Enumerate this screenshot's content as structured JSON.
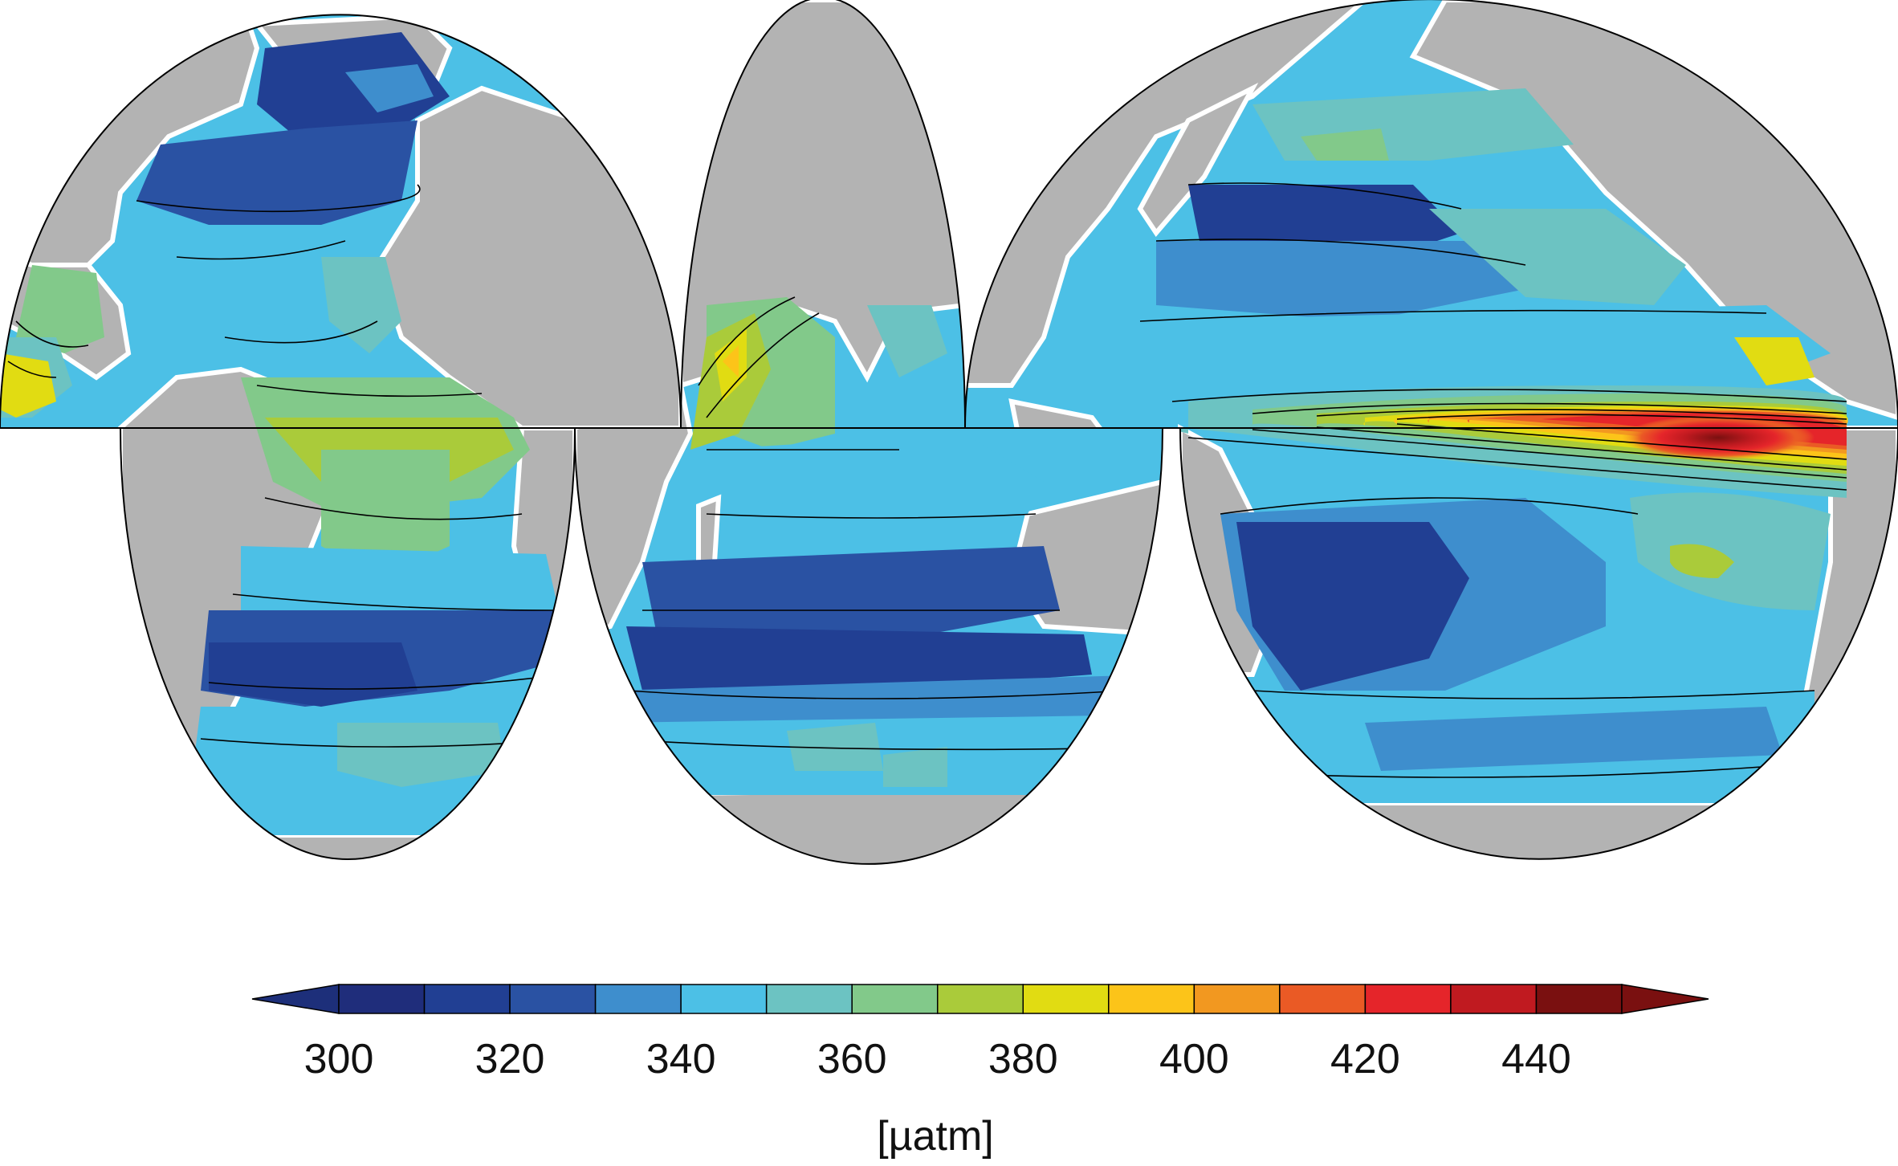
{
  "map": {
    "projection": "interrupted elliptical equal-area (three ocean lobes)",
    "lobes": [
      "atlantic-lobe",
      "indian-lobe",
      "pacific-lobe"
    ],
    "land_color": "#b3b3b3",
    "coast_outline_color": "#ffffff",
    "contour_line_color": "#000000",
    "equator_line_color": "#000000"
  },
  "colorbar": {
    "unit": "[µatm]",
    "min": 300,
    "max": 450,
    "step": 10,
    "extend": "both",
    "under_color": "#1d2f7a",
    "over_color": "#7a1010",
    "colors": [
      "#1f2d7b",
      "#213f93",
      "#2a52a3",
      "#3e8ecd",
      "#4cc0e6",
      "#6cc3c2",
      "#82c98a",
      "#aacb3a",
      "#e1dc12",
      "#fcc419",
      "#f29820",
      "#ea5a25",
      "#e5252a",
      "#c01a20",
      "#7a1010"
    ],
    "tick_values": [
      300,
      320,
      340,
      360,
      380,
      400,
      420,
      440
    ],
    "tick_labels": [
      "300",
      "320",
      "340",
      "360",
      "380",
      "400",
      "420",
      "440"
    ]
  }
}
